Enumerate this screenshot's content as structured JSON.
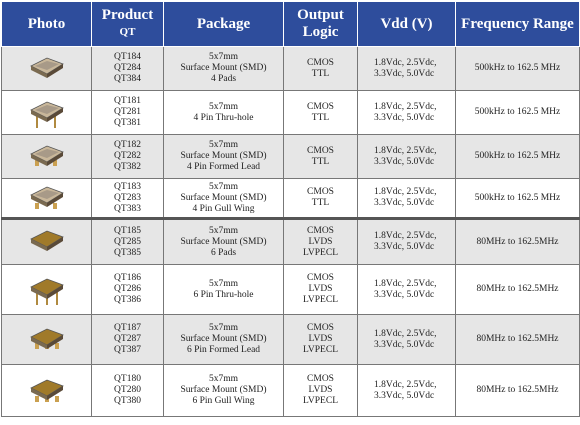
{
  "header": {
    "columns": [
      {
        "title": "Photo"
      },
      {
        "title": "Product",
        "sub": "QT"
      },
      {
        "title": "Package"
      },
      {
        "title": "Output Logic"
      },
      {
        "title": "Vdd (V)"
      },
      {
        "title": "Frequency Range"
      }
    ]
  },
  "table": {
    "rows": [
      {
        "products": [
          "QT184",
          "QT284",
          "QT384"
        ],
        "package": [
          "5x7mm",
          "Surface Mount (SMD)",
          "4 Pads"
        ],
        "logic": [
          "CMOS",
          "TTL"
        ],
        "vdd": [
          "1.8Vdc, 2.5Vdc,",
          "3.3Vdc, 5.0Vdc"
        ],
        "frequency": "500kHz to 162.5 MHz"
      },
      {
        "products": [
          "QT181",
          "QT281",
          "QT381"
        ],
        "package": [
          "5x7mm",
          "4 Pin Thru-hole"
        ],
        "logic": [
          "CMOS",
          "TTL"
        ],
        "vdd": [
          "1.8Vdc, 2.5Vdc,",
          "3.3Vdc, 5.0Vdc"
        ],
        "frequency": "500kHz to 162.5 MHz"
      },
      {
        "products": [
          "QT182",
          "QT282",
          "QT382"
        ],
        "package": [
          "5x7mm",
          "Surface Mount (SMD)",
          "4 Pin Formed Lead"
        ],
        "logic": [
          "CMOS",
          "TTL"
        ],
        "vdd": [
          "1.8Vdc, 2.5Vdc,",
          "3.3Vdc, 5.0Vdc"
        ],
        "frequency": "500kHz to 162.5 MHz"
      },
      {
        "products": [
          "QT183",
          "QT283",
          "QT383"
        ],
        "package": [
          "5x7mm",
          "Surface Mount (SMD)",
          "4 Pin Gull Wing"
        ],
        "logic": [
          "CMOS",
          "TTL"
        ],
        "vdd": [
          "1.8Vdc, 2.5Vdc,",
          "3.3Vdc, 5.0Vdc"
        ],
        "frequency": "500kHz to 162.5 MHz"
      },
      {
        "products": [
          "QT185",
          "QT285",
          "QT385"
        ],
        "package": [
          "5x7mm",
          "Surface Mount (SMD)",
          "6 Pads"
        ],
        "logic": [
          "CMOS",
          "LVDS",
          "LVPECL"
        ],
        "vdd": [
          "1.8Vdc, 2.5Vdc,",
          "3.3Vdc, 5.0Vdc"
        ],
        "frequency": "80MHz to 162.5MHz"
      },
      {
        "products": [
          "QT186",
          "QT286",
          "QT386"
        ],
        "package": [
          "5x7mm",
          "6 Pin Thru-hole"
        ],
        "logic": [
          "CMOS",
          "LVDS",
          "LVPECL"
        ],
        "vdd": [
          "1.8Vdc, 2.5Vdc,",
          "3.3Vdc, 5.0Vdc"
        ],
        "frequency": "80MHz to 162.5MHz"
      },
      {
        "products": [
          "QT187",
          "QT287",
          "QT387"
        ],
        "package": [
          "5x7mm",
          "Surface Mount (SMD)",
          "6 Pin Formed Lead"
        ],
        "logic": [
          "CMOS",
          "LVDS",
          "LVPECL"
        ],
        "vdd": [
          "1.8Vdc, 2.5Vdc,",
          "3.3Vdc, 5.0Vdc"
        ],
        "frequency": "80MHz to 162.5MHz"
      },
      {
        "products": [
          "QT180",
          "QT280",
          "QT380"
        ],
        "package": [
          "5x7mm",
          "Surface Mount (SMD)",
          "6 Pin Gull Wing"
        ],
        "logic": [
          "CMOS",
          "LVDS",
          "LVPECL"
        ],
        "vdd": [
          "1.8Vdc, 2.5Vdc,",
          "3.3Vdc, 5.0Vdc"
        ],
        "frequency": "80MHz to 162.5MHz"
      }
    ]
  }
}
